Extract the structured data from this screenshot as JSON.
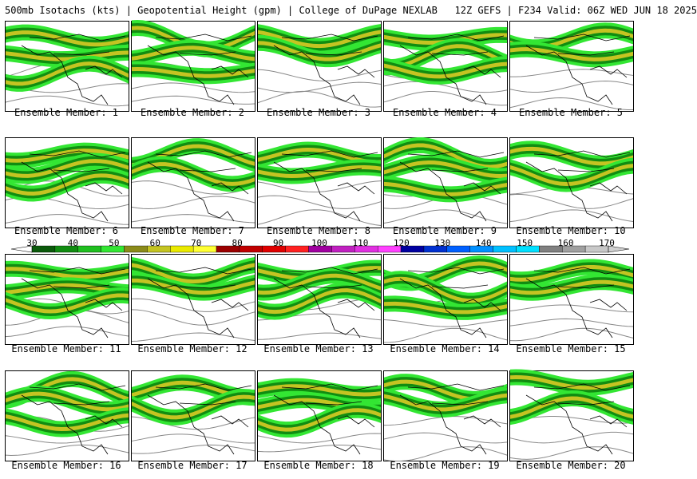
{
  "header": {
    "title": "500mb Isotachs (kts) | Geopotential Height (gpm) | College of DuPage NEXLAB   12Z GEFS | F234 Valid: 06Z WED JUN 18 2025"
  },
  "panels": [
    {
      "caption": "Ensemble Member: 1"
    },
    {
      "caption": "Ensemble Member: 2"
    },
    {
      "caption": "Ensemble Member: 3"
    },
    {
      "caption": "Ensemble Member: 4"
    },
    {
      "caption": "Ensemble Member: 5"
    },
    {
      "caption": "Ensemble Member: 6"
    },
    {
      "caption": "Ensemble Member: 7"
    },
    {
      "caption": "Ensemble Member: 8"
    },
    {
      "caption": "Ensemble Member: 9"
    },
    {
      "caption": "Ensemble Member: 10"
    },
    {
      "caption": "Ensemble Member: 11"
    },
    {
      "caption": "Ensemble Member: 12"
    },
    {
      "caption": "Ensemble Member: 13"
    },
    {
      "caption": "Ensemble Member: 14"
    },
    {
      "caption": "Ensemble Member: 15"
    },
    {
      "caption": "Ensemble Member: 16"
    },
    {
      "caption": "Ensemble Member: 17"
    },
    {
      "caption": "Ensemble Member: 18"
    },
    {
      "caption": "Ensemble Member: 19"
    },
    {
      "caption": "Ensemble Member: 20"
    }
  ],
  "colorbar": {
    "ticks": [
      "30",
      "40",
      "50",
      "60",
      "70",
      "80",
      "90",
      "100",
      "110",
      "120",
      "130",
      "140",
      "150",
      "160",
      "170"
    ],
    "colors": [
      "#0b5a0b",
      "#118c11",
      "#1fbf1f",
      "#33e633",
      "#8b8b1a",
      "#c4c422",
      "#eaea00",
      "#ffff33",
      "#9b0000",
      "#c00000",
      "#e00000",
      "#ff2020",
      "#a000a0",
      "#c020c0",
      "#e030e0",
      "#ff40ff",
      "#0000a0",
      "#0030d0",
      "#0060ff",
      "#0090ff",
      "#00c0ff",
      "#00e0ff",
      "#808080",
      "#a0a0a0",
      "#c8c8c8"
    ]
  },
  "map_colors": {
    "jet_light": "#33e633",
    "jet_mid": "#118c11",
    "jet_core": "#c4c422",
    "jet_max": "#c00000",
    "height_contour": "#888888",
    "coastline": "#000000"
  }
}
